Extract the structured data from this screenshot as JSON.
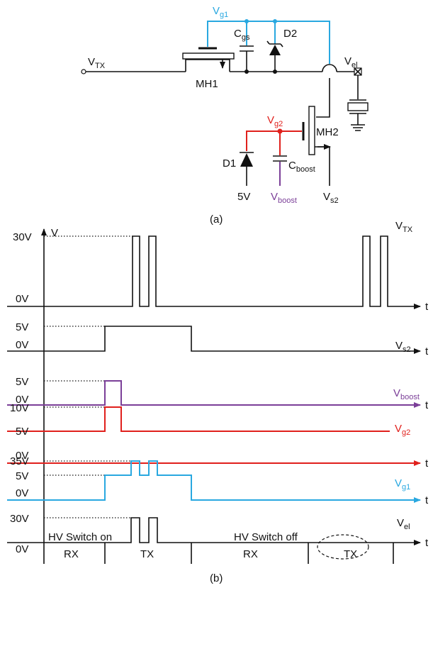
{
  "circuit": {
    "v_g1": {
      "base": "V",
      "sub": "g1"
    },
    "c_gs": {
      "base": "C",
      "sub": "gs"
    },
    "d2": "D2",
    "v_tx": {
      "base": "V",
      "sub": "TX"
    },
    "v_el": {
      "base": "V",
      "sub": "el"
    },
    "mh1": "MH1",
    "v_g2": {
      "base": "V",
      "sub": "g2"
    },
    "mh2": "MH2",
    "d1": "D1",
    "c_boost": {
      "base": "C",
      "sub": "boost"
    },
    "five_v": "5V",
    "v_boost": {
      "base": "V",
      "sub": "boost"
    },
    "v_s2": {
      "base": "V",
      "sub": "s2"
    },
    "caption": "(a)"
  },
  "timing": {
    "axis_label": "V",
    "time_label": "t",
    "rows": [
      {
        "signal": {
          "base": "V",
          "sub": "TX"
        },
        "levels": [
          "30V",
          "0V"
        ]
      },
      {
        "signal": {
          "base": "V",
          "sub": "s2"
        },
        "levels": [
          "5V",
          "0V"
        ]
      },
      {
        "signal": {
          "base": "V",
          "sub": "boost"
        },
        "levels": [
          "5V",
          "0V"
        ]
      },
      {
        "signal": {
          "base": "V",
          "sub": "g2"
        },
        "levels": [
          "10V",
          "5V",
          "0V"
        ]
      },
      {
        "signal": {
          "base": "V",
          "sub": "g1"
        },
        "levels": [
          "35V",
          "5V",
          "0V"
        ]
      },
      {
        "signal": {
          "base": "V",
          "sub": "el"
        },
        "levels": [
          "30V",
          "0V"
        ]
      }
    ],
    "annotations": [
      "HV Switch on",
      "HV Switch off"
    ],
    "phases": [
      "RX",
      "TX",
      "RX",
      "TX"
    ],
    "caption": "(b)"
  }
}
